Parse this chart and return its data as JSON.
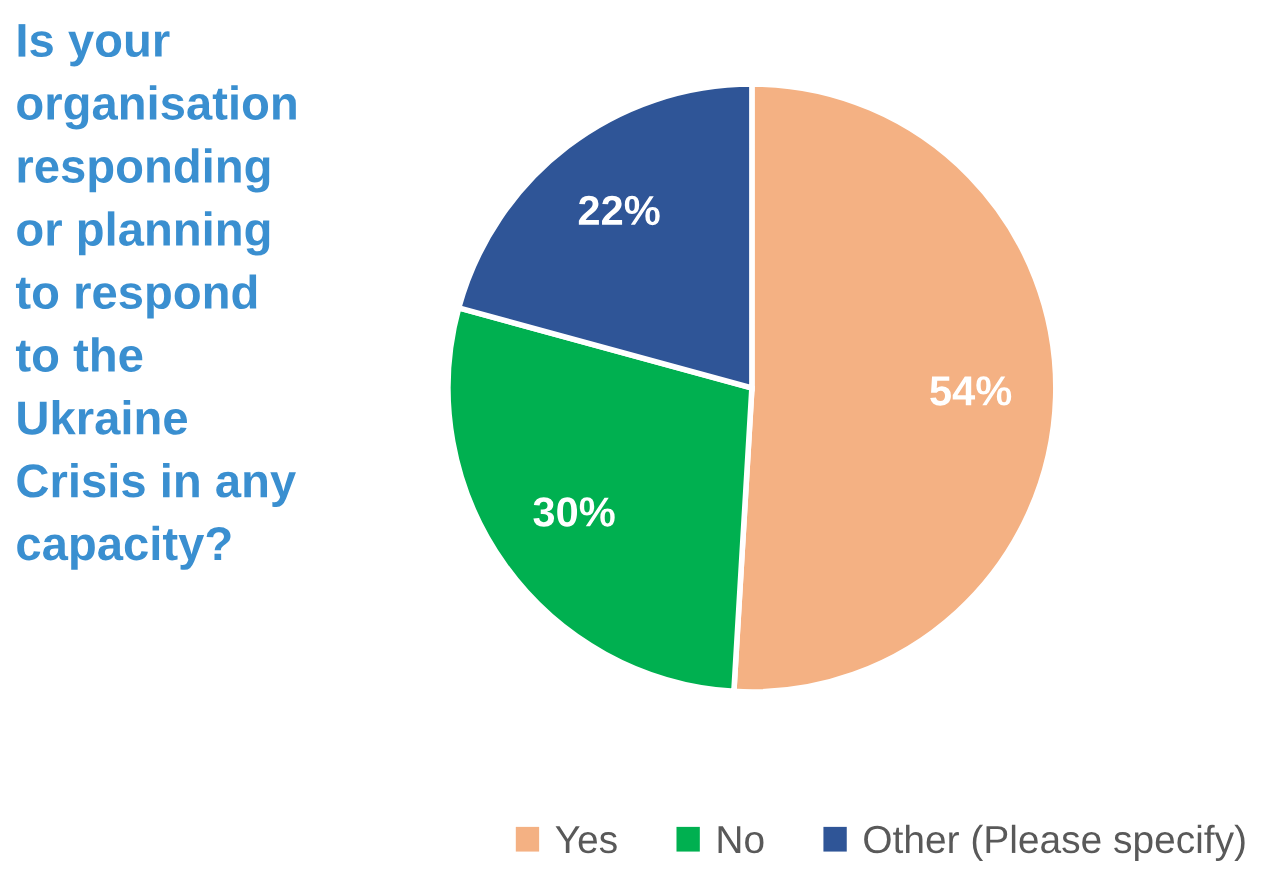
{
  "chart_data": {
    "type": "pie",
    "title": "Is your\norganisation\nresponding\nor planning\nto respond\nto the\nUkraine\nCrisis in any\ncapacity?",
    "categories": [
      "Yes",
      "No",
      "Other (Please specify)"
    ],
    "values": [
      54,
      30,
      22
    ],
    "colors": [
      "#f4b183",
      "#00b050",
      "#2f5597"
    ],
    "value_labels": [
      "54%",
      "30%",
      "22%"
    ],
    "legend": "bottom"
  }
}
